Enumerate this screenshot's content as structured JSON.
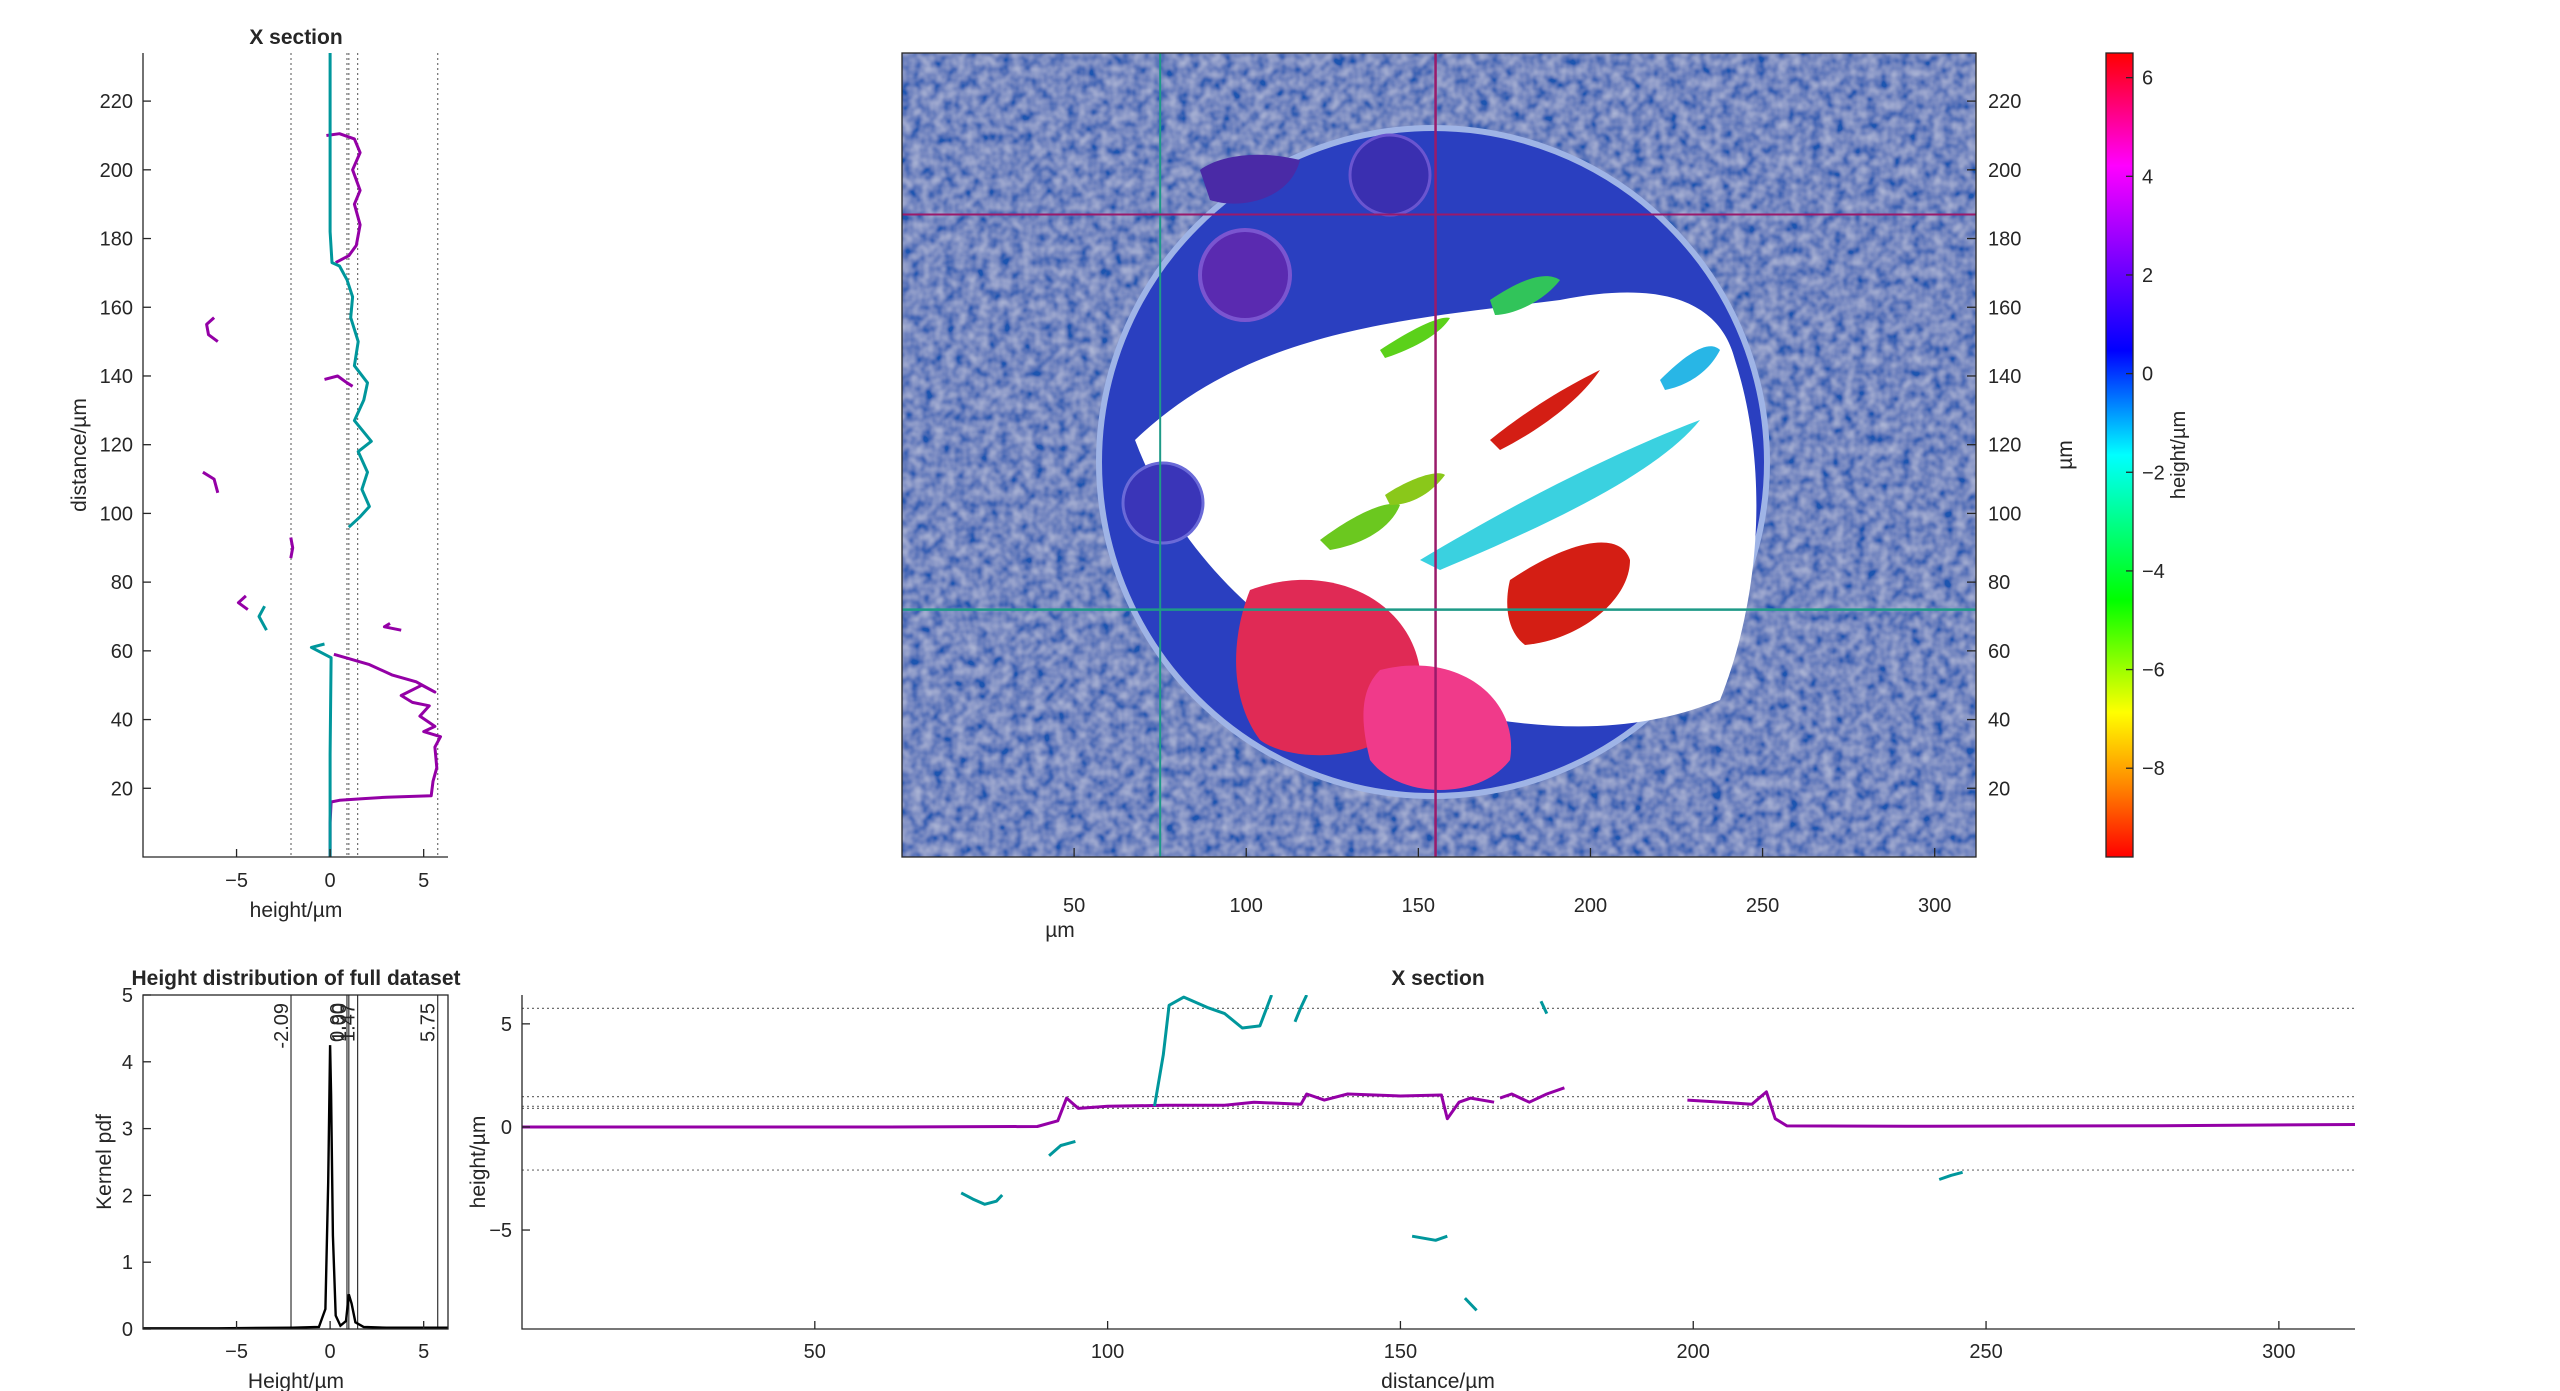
{
  "colors": {
    "series_a": "#9400a6",
    "series_b": "#00979c",
    "cursor_vertical": "#9a1a6a",
    "cursor_horizontal": "#1e9a87",
    "map_background": "#1f55b0",
    "particle_white": "#ffffff"
  },
  "chart_data": [
    {
      "id": "map",
      "type": "heatmap",
      "title": "",
      "xlabel": "µm",
      "ylabel": "µm",
      "xticks": [
        50,
        100,
        150,
        200,
        250,
        300
      ],
      "yticks": [
        20,
        40,
        60,
        80,
        100,
        120,
        140,
        160,
        180,
        200,
        220
      ],
      "xlim": [
        0,
        312
      ],
      "ylim": [
        0,
        234
      ],
      "y_axis_side": "right",
      "cursor_x": 155,
      "cursor_y": 72,
      "cursor_x_secondary": 75,
      "cursor_y_secondary": 187,
      "colorbar": {
        "label": "height/µm",
        "limits": [
          -9.8,
          6.5
        ],
        "ticks": [
          6,
          4,
          2,
          0,
          -2,
          -4,
          -6,
          -8
        ],
        "colors": [
          "#ff0000",
          "#ff8800",
          "#ffff00",
          "#00ff00",
          "#00ffff",
          "#0000ff",
          "#ff00ff",
          "#ff0000"
        ]
      }
    },
    {
      "id": "vertical-section",
      "type": "line",
      "title": "X section",
      "xlabel": "height/µm",
      "ylabel": "distance/µm",
      "xticks": [
        -5,
        0,
        5
      ],
      "yticks": [
        20,
        40,
        60,
        80,
        100,
        120,
        140,
        160,
        180,
        200,
        220
      ],
      "xlim": [
        -10,
        6.3
      ],
      "ylim": [
        0,
        234
      ],
      "reference_x": [
        -2.09,
        0.9,
        1.0,
        1.47,
        5.75
      ],
      "series": [
        {
          "color": "series_a",
          "segments": [
            [
              [
                0,
                0
              ],
              [
                0,
                10
              ],
              [
                0.05,
                16
              ],
              [
                0.5,
                16.5
              ],
              [
                1.8,
                17
              ],
              [
                3,
                17.4
              ],
              [
                5.4,
                17.8
              ],
              [
                5.5,
                22
              ],
              [
                5.7,
                26
              ],
              [
                5.6,
                32
              ],
              [
                5.9,
                35
              ],
              [
                5.0,
                36.5
              ],
              [
                5.6,
                38
              ],
              [
                4.8,
                41
              ],
              [
                5.3,
                44
              ],
              [
                4.4,
                45
              ],
              [
                3.8,
                47
              ],
              [
                4.9,
                50
              ],
              [
                5.6,
                48
              ],
              [
                4.6,
                51
              ],
              [
                3.3,
                53
              ],
              [
                2.1,
                56
              ],
              [
                0.2,
                59
              ]
            ],
            [
              [
                3.8,
                66
              ],
              [
                2.9,
                67
              ],
              [
                3.2,
                68
              ]
            ],
            [
              [
                -4.4,
                72
              ],
              [
                -4.9,
                74
              ],
              [
                -4.5,
                76
              ]
            ],
            [
              [
                -2.1,
                87
              ],
              [
                -2.0,
                90
              ],
              [
                -2.1,
                93
              ]
            ],
            [
              [
                -6.0,
                106
              ],
              [
                -6.2,
                110
              ],
              [
                -6.8,
                112
              ]
            ],
            [
              [
                -0.3,
                139
              ],
              [
                0.4,
                140
              ],
              [
                0.9,
                138
              ],
              [
                1.2,
                137
              ]
            ],
            [
              [
                -6.0,
                150
              ],
              [
                -6.5,
                152
              ],
              [
                -6.6,
                155
              ],
              [
                -6.2,
                157
              ]
            ],
            [
              [
                -0.2,
                210
              ],
              [
                0.5,
                210.5
              ],
              [
                1.3,
                209
              ],
              [
                1.6,
                205
              ],
              [
                1.2,
                200
              ],
              [
                1.6,
                194
              ],
              [
                1.3,
                190
              ],
              [
                1.6,
                184
              ],
              [
                1.4,
                178
              ],
              [
                1.0,
                175
              ],
              [
                0.3,
                173
              ]
            ]
          ]
        },
        {
          "color": "series_b",
          "segments": [
            [
              [
                0,
                0
              ],
              [
                0,
                30
              ],
              [
                0.05,
                58
              ],
              [
                -1.0,
                61
              ],
              [
                -0.3,
                62
              ]
            ],
            [
              [
                -3.4,
                66
              ],
              [
                -3.8,
                70
              ],
              [
                -3.5,
                73
              ]
            ],
            [
              [
                1.0,
                96
              ],
              [
                1.6,
                99
              ],
              [
                2.1,
                102
              ],
              [
                1.7,
                107
              ],
              [
                2.0,
                112
              ],
              [
                1.5,
                118
              ],
              [
                2.2,
                121
              ],
              [
                1.3,
                127
              ],
              [
                1.8,
                133
              ],
              [
                2.0,
                138
              ],
              [
                1.3,
                143
              ],
              [
                1.5,
                150
              ],
              [
                1.1,
                157
              ],
              [
                1.2,
                163
              ],
              [
                0.9,
                168
              ],
              [
                0.5,
                172
              ],
              [
                0.1,
                173
              ],
              [
                0,
                182
              ],
              [
                0,
                200
              ],
              [
                0,
                234
              ]
            ]
          ]
        }
      ]
    },
    {
      "id": "height-distribution",
      "type": "line",
      "title": "Height distribution of full dataset",
      "xlabel": "Height/µm",
      "ylabel": "Kernel pdf",
      "xticks": [
        -5,
        0,
        5
      ],
      "yticks": [
        0,
        1,
        2,
        3,
        4,
        5
      ],
      "xlim": [
        -10,
        6.3
      ],
      "ylim": [
        0,
        5
      ],
      "markers": [
        {
          "x": -2.09,
          "label": "-2.09"
        },
        {
          "x": 0.9,
          "label": "0.90"
        },
        {
          "x": 1.0,
          "label": "1.00"
        },
        {
          "x": 1.47,
          "label": "1.47"
        },
        {
          "x": 5.75,
          "label": "5.75"
        }
      ],
      "series": [
        {
          "color": "#000000",
          "points": [
            [
              -10,
              0.01
            ],
            [
              -6,
              0.01
            ],
            [
              -2,
              0.02
            ],
            [
              -0.6,
              0.03
            ],
            [
              -0.25,
              0.3
            ],
            [
              -0.1,
              2.2
            ],
            [
              0,
              4.25
            ],
            [
              0.05,
              3.5
            ],
            [
              0.15,
              1.4
            ],
            [
              0.3,
              0.2
            ],
            [
              0.55,
              0.05
            ],
            [
              0.85,
              0.12
            ],
            [
              1.0,
              0.52
            ],
            [
              1.15,
              0.38
            ],
            [
              1.35,
              0.1
            ],
            [
              1.8,
              0.03
            ],
            [
              3,
              0.02
            ],
            [
              6.3,
              0.02
            ]
          ]
        }
      ]
    },
    {
      "id": "horizontal-section",
      "type": "line",
      "title": "X section",
      "xlabel": "distance/µm",
      "ylabel": "height/µm",
      "xticks": [
        50,
        100,
        150,
        200,
        250,
        300
      ],
      "yticks": [
        -5,
        0,
        5
      ],
      "xlim": [
        0,
        313
      ],
      "ylim": [
        -9.8,
        6.4
      ],
      "reference_y": [
        -2.09,
        0.9,
        1.0,
        1.47,
        5.75
      ],
      "series": [
        {
          "color": "series_a",
          "segments": [
            [
              [
                0,
                0
              ],
              [
                60,
                0
              ],
              [
                88,
                0.02
              ],
              [
                91.5,
                0.3
              ],
              [
                93,
                1.4
              ],
              [
                95,
                0.9
              ],
              [
                100,
                1.0
              ],
              [
                110,
                1.05
              ],
              [
                120,
                1.05
              ],
              [
                125,
                1.2
              ],
              [
                133,
                1.1
              ],
              [
                134,
                1.6
              ],
              [
                137,
                1.3
              ],
              [
                141,
                1.6
              ],
              [
                150,
                1.5
              ],
              [
                157,
                1.55
              ],
              [
                158,
                0.4
              ],
              [
                160,
                1.2
              ],
              [
                162,
                1.4
              ],
              [
                166,
                1.2
              ]
            ],
            [
              [
                167,
                1.4
              ],
              [
                169,
                1.6
              ],
              [
                172,
                1.2
              ],
              [
                175,
                1.6
              ],
              [
                178,
                1.9
              ]
            ],
            [
              [
                199,
                1.3
              ],
              [
                205,
                1.2
              ],
              [
                210,
                1.1
              ],
              [
                212.5,
                1.7
              ],
              [
                214,
                0.4
              ],
              [
                216,
                0.05
              ],
              [
                240,
                0.03
              ],
              [
                280,
                0.06
              ],
              [
                313,
                0.12
              ]
            ]
          ]
        },
        {
          "color": "series_b",
          "segments": [
            [
              [
                75,
                -3.2
              ],
              [
                77,
                -3.5
              ],
              [
                79,
                -3.75
              ],
              [
                81,
                -3.6
              ],
              [
                82,
                -3.3
              ]
            ],
            [
              [
                90,
                -1.4
              ],
              [
                92,
                -0.9
              ],
              [
                94.5,
                -0.7
              ]
            ],
            [
              [
                108,
                1.0
              ],
              [
                109.5,
                3.5
              ],
              [
                110.5,
                5.9
              ],
              [
                113,
                6.3
              ],
              [
                117,
                5.8
              ],
              [
                120,
                5.5
              ],
              [
                123,
                4.8
              ],
              [
                126,
                4.9
              ],
              [
                128,
                6.4
              ]
            ],
            [
              [
                132,
                5.1
              ],
              [
                133,
                5.8
              ],
              [
                134,
                6.4
              ]
            ],
            [
              [
                152,
                -5.3
              ],
              [
                156,
                -5.5
              ],
              [
                158,
                -5.3
              ]
            ],
            [
              [
                161,
                -8.3
              ],
              [
                163,
                -8.9
              ]
            ],
            [
              [
                174,
                6.1
              ],
              [
                175,
                5.5
              ]
            ],
            [
              [
                242,
                -2.55
              ],
              [
                244,
                -2.35
              ],
              [
                246,
                -2.2
              ]
            ]
          ]
        }
      ]
    }
  ]
}
